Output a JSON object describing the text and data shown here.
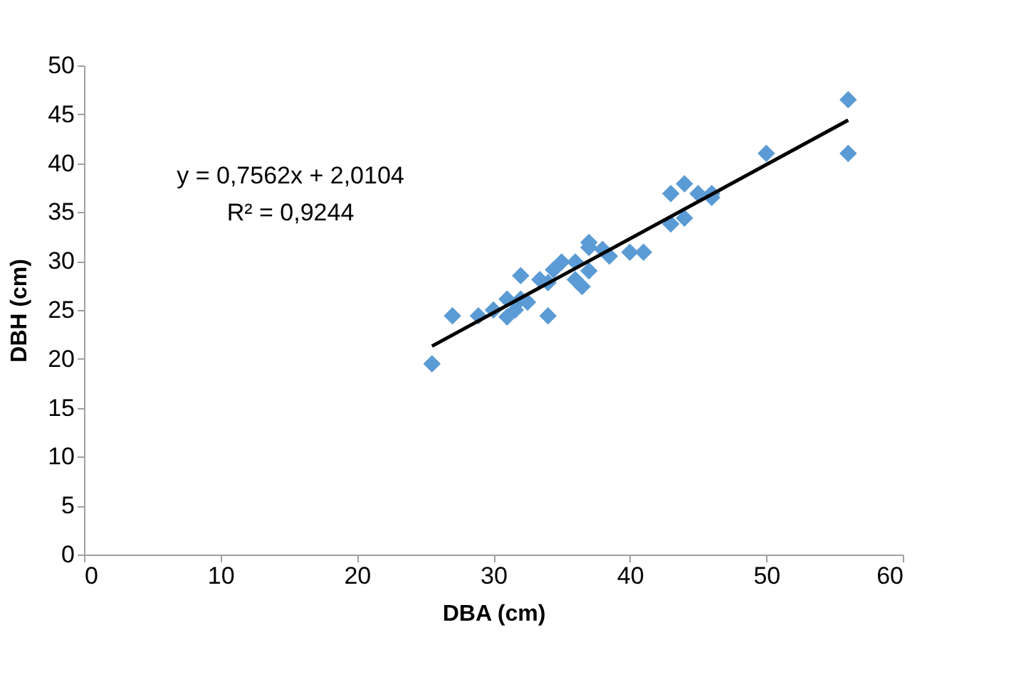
{
  "chart_data": {
    "type": "scatter",
    "xlabel": "DBA (cm)",
    "ylabel": "DBH (cm)",
    "xlim": [
      0,
      60
    ],
    "xticks": [
      0,
      10,
      20,
      30,
      40,
      50,
      60
    ],
    "ylim": [
      0,
      50
    ],
    "yticks": [
      0,
      5,
      10,
      15,
      20,
      25,
      30,
      35,
      40,
      45,
      50
    ],
    "grid": false,
    "marker": "diamond",
    "annotations": [
      "y = 0,7562x + 2,0104",
      "R² = 0,9244"
    ],
    "series": [
      {
        "color": "#5b9bd5",
        "x": [
          25.5,
          27.0,
          28.9,
          30.0,
          31.0,
          31.0,
          31.6,
          32.0,
          32.5,
          32.0,
          33.4,
          34.0,
          34.0,
          34.4,
          35.0,
          36.0,
          36.0,
          36.5,
          37.0,
          37.0,
          37.0,
          38.0,
          38.5,
          40.0,
          41.0,
          43.0,
          43.0,
          44.0,
          44.0,
          45.0,
          46.0,
          46.0,
          50.0,
          56.0,
          56.0
        ],
        "values": [
          19.5,
          24.4,
          24.4,
          25.0,
          26.1,
          24.3,
          25.0,
          26.1,
          25.8,
          28.5,
          28.1,
          27.8,
          24.4,
          29.1,
          29.9,
          29.9,
          28.1,
          27.4,
          31.9,
          31.4,
          29.0,
          31.2,
          30.5,
          30.9,
          30.9,
          36.9,
          33.8,
          37.9,
          34.4,
          36.9,
          36.9,
          36.5,
          41.0,
          46.5,
          41.0
        ]
      },
      {
        "type": "line",
        "marker": "none",
        "color": "#000000",
        "x": [
          25.5,
          56.0
        ],
        "values": [
          21.3,
          44.4
        ]
      }
    ]
  }
}
